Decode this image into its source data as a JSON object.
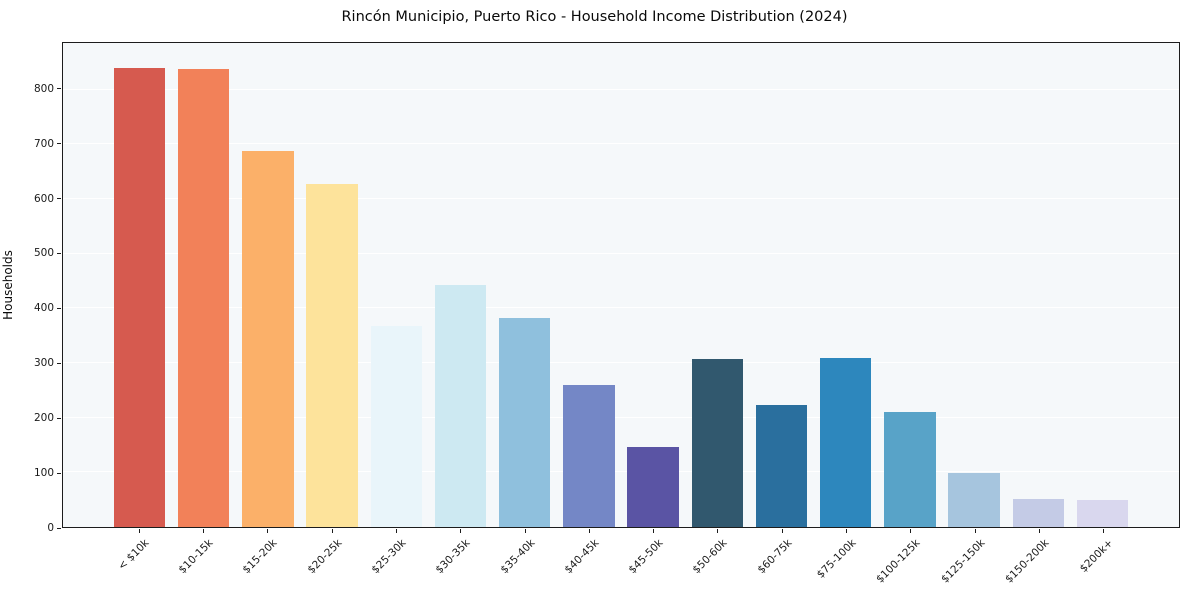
{
  "chart_data": {
    "type": "bar",
    "title": "Rincón Municipio, Puerto Rico - Household Income Distribution (2024)",
    "xlabel": "",
    "ylabel": "Households",
    "categories": [
      "< $10k",
      "$10-15k",
      "$15-20k",
      "$20-25k",
      "$25-30k",
      "$30-35k",
      "$35-40k",
      "$40-45k",
      "$45-50k",
      "$50-60k",
      "$60-75k",
      "$75-100k",
      "$100-125k",
      "$125-150k",
      "$150-200k",
      "$200k+"
    ],
    "values": [
      840,
      837,
      688,
      628,
      367,
      442,
      383,
      259,
      147,
      308,
      224,
      309,
      211,
      98,
      52,
      50
    ],
    "bar_colors": [
      "#d65a4f",
      "#f28159",
      "#fbb069",
      "#fde39b",
      "#e9f5fa",
      "#cde9f2",
      "#8fc0dd",
      "#7487c6",
      "#5a54a4",
      "#31586e",
      "#2a6f9e",
      "#2d87bd",
      "#58a3c8",
      "#a6c5de",
      "#c4cbe6",
      "#d9d7ee"
    ],
    "ylim": [
      0,
      885
    ],
    "yticks": [
      0,
      100,
      200,
      300,
      400,
      500,
      600,
      700,
      800
    ],
    "grid": "horizontal",
    "legend": "none",
    "plot_background": "#f5f8fa",
    "bar_width_fraction": 0.8
  }
}
